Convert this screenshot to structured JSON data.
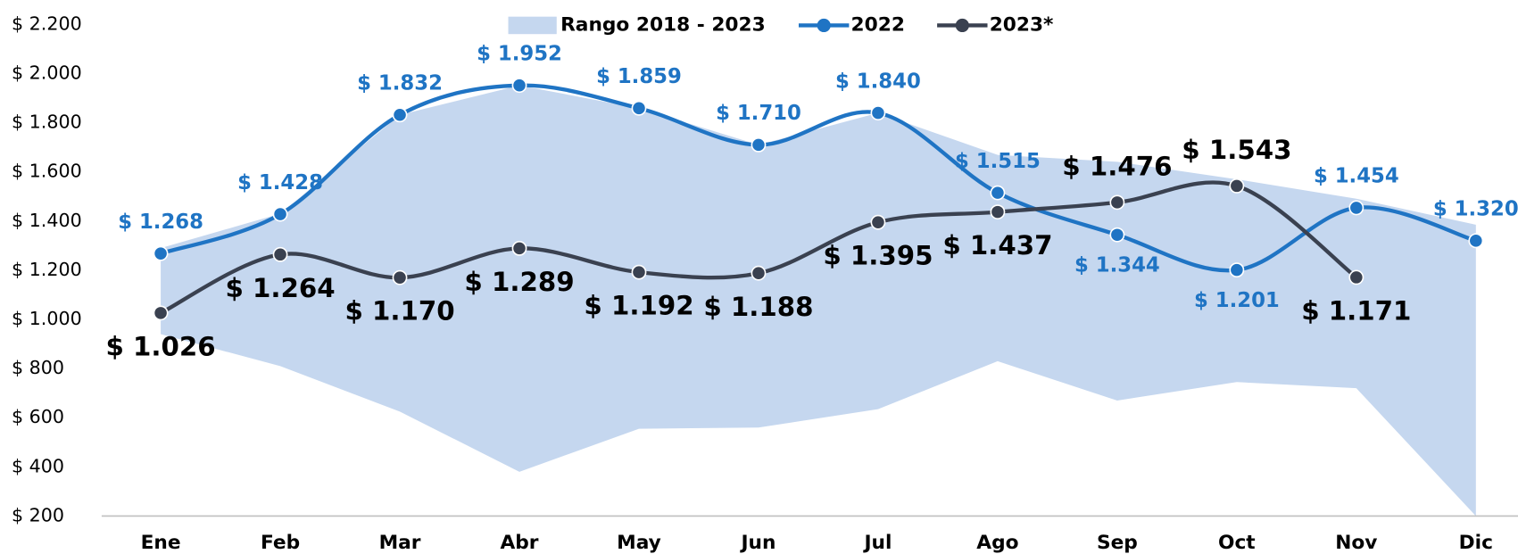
{
  "chart_data": {
    "type": "line",
    "categories": [
      "Ene",
      "Feb",
      "Mar",
      "Abr",
      "May",
      "Jun",
      "Jul",
      "Ago",
      "Sep",
      "Oct",
      "Nov",
      "Dic"
    ],
    "range": {
      "name": "Rango 2018 - 2023",
      "color": "#c5d7ef",
      "high": [
        1290,
        1430,
        1832,
        1952,
        1859,
        1710,
        1840,
        1669,
        1641,
        1570,
        1491,
        1385
      ],
      "low": [
        940,
        810,
        625,
        380,
        555,
        560,
        635,
        830,
        670,
        745,
        720,
        200
      ]
    },
    "series": [
      {
        "name": "2022",
        "color": "#1f74c4",
        "values": [
          1268,
          1428,
          1832,
          1952,
          1859,
          1710,
          1840,
          1515,
          1344,
          1201,
          1454,
          1320
        ],
        "value_labels": [
          "$ 1.268",
          "$ 1.428",
          "$ 1.832",
          "$ 1.952",
          "$ 1.859",
          "$ 1.710",
          "$ 1.840",
          "$ 1.515",
          "$ 1.344",
          "$ 1.201",
          "$ 1.454",
          "$ 1.320"
        ]
      },
      {
        "name": "2023*",
        "color": "#3a4150",
        "values": [
          1026,
          1264,
          1170,
          1289,
          1192,
          1188,
          1395,
          1437,
          1476,
          1543,
          1171,
          null
        ],
        "value_labels": [
          "$ 1.026",
          "$ 1.264",
          "$ 1.170",
          "$ 1.289",
          "$ 1.192",
          "$ 1.188",
          "$ 1.395",
          "$ 1.437",
          "$ 1.476",
          "$ 1.543",
          "$ 1.171",
          null
        ]
      }
    ],
    "ylim": [
      200,
      2200
    ],
    "yticks": [
      {
        "value": 200,
        "label": "$ 200"
      },
      {
        "value": 400,
        "label": "$ 400"
      },
      {
        "value": 600,
        "label": "$ 600"
      },
      {
        "value": 800,
        "label": "$ 800"
      },
      {
        "value": 1000,
        "label": "$ 1.000"
      },
      {
        "value": 1200,
        "label": "$ 1.200"
      },
      {
        "value": 1400,
        "label": "$ 1.400"
      },
      {
        "value": 1600,
        "label": "$ 1.600"
      },
      {
        "value": 1800,
        "label": "$ 1.800"
      },
      {
        "value": 2000,
        "label": "$ 2.000"
      },
      {
        "value": 2200,
        "label": "$ 2.200"
      }
    ],
    "grid": false,
    "smooth": true,
    "legend": "top"
  }
}
